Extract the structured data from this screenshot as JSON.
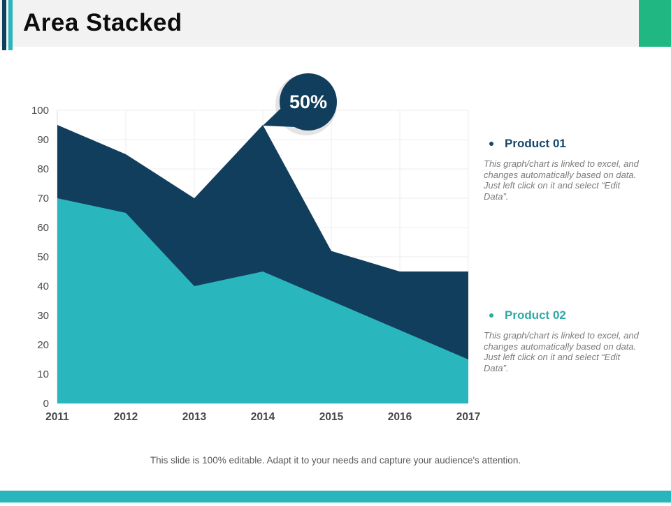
{
  "header": {
    "title": "Area Stacked"
  },
  "colors": {
    "navy": "#123e5d",
    "teal": "#29b6bd",
    "corner_green": "#21b783",
    "header_bg": "#f2f2f2",
    "bottom_bar": "#2ab5bc",
    "grid": "#ececec",
    "axis_border": "#d9d9d9",
    "axis_text": "#4a4a4a",
    "legend1_accent": "#16466a",
    "legend2_accent": "#2fa8a6",
    "body_text": "#7b7b7b"
  },
  "chart_data": {
    "type": "area",
    "stacked": true,
    "title": "",
    "xlabel": "",
    "ylabel": "",
    "categories": [
      "2011",
      "2012",
      "2013",
      "2014",
      "2015",
      "2016",
      "2017"
    ],
    "series": [
      {
        "name": "Product 02",
        "color": "#29b6bd",
        "values": [
          70,
          65,
          40,
          45,
          35,
          25,
          15
        ]
      },
      {
        "name": "Product 01",
        "color": "#123e5d",
        "values": [
          25,
          20,
          30,
          50,
          17,
          20,
          30
        ]
      }
    ],
    "stacked_totals": [
      95,
      85,
      70,
      95,
      52,
      45,
      45
    ],
    "ylim": [
      0,
      100
    ],
    "y_tick_step": 10,
    "y_ticks": [
      "0",
      "10",
      "20",
      "30",
      "40",
      "50",
      "60",
      "70",
      "80",
      "90",
      "100"
    ],
    "grid": true,
    "legend_position": "right",
    "annotation": {
      "text": "50%",
      "category": "2014",
      "value": 95
    }
  },
  "legend": {
    "items": [
      {
        "label": "Product 01",
        "description": "This graph/chart is linked to excel, and changes automatically based on data. Just left click on it and select “Edit Data”."
      },
      {
        "label": "Product 02",
        "description": "This graph/chart is linked to excel, and changes automatically based on data. Just left click on it and select “Edit Data”."
      }
    ]
  },
  "footer": {
    "caption": "This slide is 100% editable. Adapt it to your needs and capture your audience's attention."
  }
}
